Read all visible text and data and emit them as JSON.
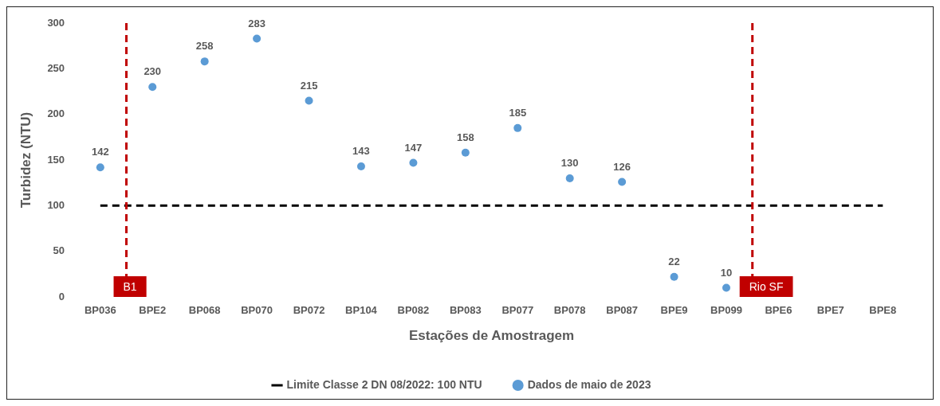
{
  "chart_data": {
    "type": "scatter",
    "xlabel": "Estações de Amostragem",
    "ylabel": "Turbidez (NTU)",
    "categories": [
      "BP036",
      "BPE2",
      "BP068",
      "BP070",
      "BP072",
      "BP104",
      "BP082",
      "BP083",
      "BP077",
      "BP078",
      "BP087",
      "BPE9",
      "BP099",
      "BPE6",
      "BPE7",
      "BPE8"
    ],
    "series": [
      {
        "name": "Limite Classe 2 DN 08/2022: 100 NTU",
        "type": "line",
        "color": "#000000",
        "line_style": "dashed",
        "marker": "none",
        "values": [
          100,
          100,
          100,
          100,
          100,
          100,
          100,
          100,
          100,
          100,
          100,
          100,
          100,
          100,
          100,
          100
        ]
      },
      {
        "name": "Dados de maio de 2023",
        "color": "#5b9bd5",
        "marker": "circle",
        "values": [
          142,
          230,
          258,
          283,
          215,
          143,
          147,
          158,
          185,
          130,
          126,
          22,
          10,
          null,
          null,
          null
        ],
        "value_labels": [
          "142",
          "230",
          "258",
          "283",
          "215",
          "143",
          "147",
          "158",
          "185",
          "130",
          "126",
          "22",
          "10",
          null,
          null,
          null
        ]
      }
    ],
    "annotations": [
      "B1",
      "Rio SF"
    ],
    "ylim": [
      0,
      300
    ],
    "yticks": [
      0,
      50,
      100,
      150,
      200,
      250,
      300
    ],
    "grid": false,
    "legend": "bottom"
  }
}
